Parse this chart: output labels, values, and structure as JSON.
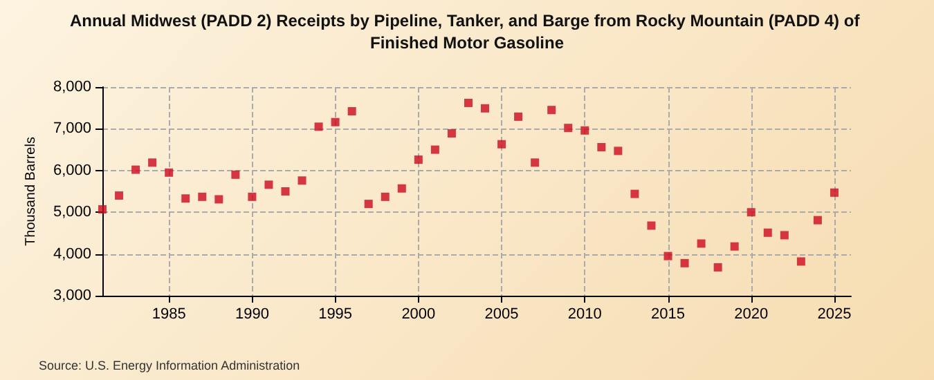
{
  "chart_data": {
    "type": "scatter",
    "title": "Annual Midwest (PADD 2) Receipts by Pipeline, Tanker, and Barge from Rocky Mountain (PADD 4) of Finished Motor Gasoline",
    "ylabel": "Thousand Barrels",
    "annotations": [
      "Source: U.S. Energy Information Administration"
    ],
    "x": [
      1981,
      1982,
      1983,
      1984,
      1985,
      1986,
      1987,
      1988,
      1989,
      1990,
      1991,
      1992,
      1993,
      1994,
      1995,
      1996,
      1997,
      1998,
      1999,
      2000,
      2001,
      2002,
      2003,
      2004,
      2005,
      2006,
      2007,
      2008,
      2009,
      2010,
      2011,
      2012,
      2013,
      2014,
      2015,
      2016,
      2017,
      2018,
      2019,
      2020,
      2021,
      2022,
      2023,
      2024,
      2025
    ],
    "series": [
      {
        "color": "#cc0a1e",
        "values": [
          5070,
          5400,
          6020,
          6190,
          5950,
          5330,
          5370,
          5310,
          5900,
          5370,
          5660,
          5500,
          5760,
          7050,
          7160,
          7420,
          5200,
          5370,
          5570,
          6260,
          6500,
          6890,
          7620,
          7490,
          6630,
          7290,
          6190,
          7450,
          7020,
          6960,
          6560,
          6470,
          5440,
          4680,
          3950,
          3780,
          4250,
          3680,
          4180,
          5000,
          4510,
          4450,
          3820,
          4810,
          5470
        ]
      }
    ],
    "xlim": [
      1981,
      2026
    ],
    "xticks": [
      1985,
      1990,
      1995,
      2000,
      2005,
      2010,
      2015,
      2020,
      2025
    ],
    "ylim": [
      3000,
      8000
    ],
    "yticks": [
      {
        "value": 3000,
        "label": "3,000"
      },
      {
        "value": 4000,
        "label": "4,000"
      },
      {
        "value": 5000,
        "label": "5,000"
      },
      {
        "value": 6000,
        "label": "6,000"
      },
      {
        "value": 7000,
        "label": "7,000"
      },
      {
        "value": 8000,
        "label": "8,000"
      }
    ],
    "grid": true,
    "marker": "square"
  }
}
